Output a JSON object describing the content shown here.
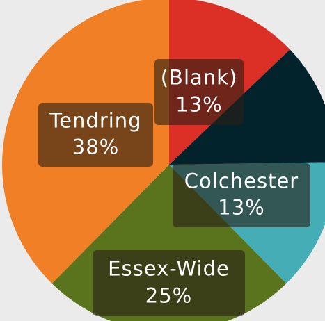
{
  "chart_data": {
    "type": "pie",
    "categories": [
      "(Blank)",
      null,
      "Colchester",
      "Essex-Wide",
      "Tendring"
    ],
    "values": [
      13,
      12,
      13,
      25,
      38
    ],
    "value_labels": [
      "13%",
      null,
      "13%",
      "25%",
      "38%"
    ],
    "colors": [
      "#dc3026",
      "#03232c",
      "#45adb5",
      "#5a741e",
      "#f07f26"
    ]
  }
}
